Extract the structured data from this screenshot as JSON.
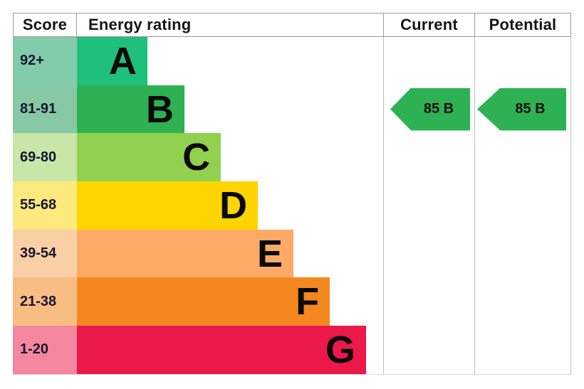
{
  "header": {
    "score": "Score",
    "energy_rating": "Energy rating",
    "current": "Current",
    "potential": "Potential"
  },
  "chart_data": {
    "type": "bar",
    "title": "Energy rating",
    "orientation": "horizontal",
    "categories": [
      "A",
      "B",
      "C",
      "D",
      "E",
      "F",
      "G"
    ],
    "score_ranges": [
      "92+",
      "81-91",
      "69-80",
      "55-68",
      "39-54",
      "21-38",
      "1-20"
    ],
    "bands": [
      {
        "letter": "A",
        "score_range": "92+",
        "width_pct": 23.0,
        "bar_color": "#1fc07c",
        "score_color": "#82cbab"
      },
      {
        "letter": "B",
        "score_range": "81-91",
        "width_pct": 35.1,
        "bar_color": "#2eb153",
        "score_color": "#86c9a4"
      },
      {
        "letter": "C",
        "score_range": "69-80",
        "width_pct": 47.0,
        "bar_color": "#91d14f",
        "score_color": "#c7e6a8"
      },
      {
        "letter": "D",
        "score_range": "55-68",
        "width_pct": 59.1,
        "bar_color": "#ffd400",
        "score_color": "#fee97e"
      },
      {
        "letter": "E",
        "score_range": "39-54",
        "width_pct": 70.7,
        "bar_color": "#fbab65",
        "score_color": "#fbcfa5"
      },
      {
        "letter": "F",
        "score_range": "21-38",
        "width_pct": 82.6,
        "bar_color": "#f5871f",
        "score_color": "#f8bd82"
      },
      {
        "letter": "G",
        "score_range": "1-20",
        "width_pct": 94.4,
        "bar_color": "#eb184a",
        "score_color": "#f4879e"
      }
    ],
    "current": {
      "label": "85 B",
      "value": 85,
      "band": "B",
      "arrow_color": "#2eb153"
    },
    "potential": {
      "label": "85 B",
      "value": 85,
      "band": "B",
      "arrow_color": "#2eb153"
    }
  }
}
